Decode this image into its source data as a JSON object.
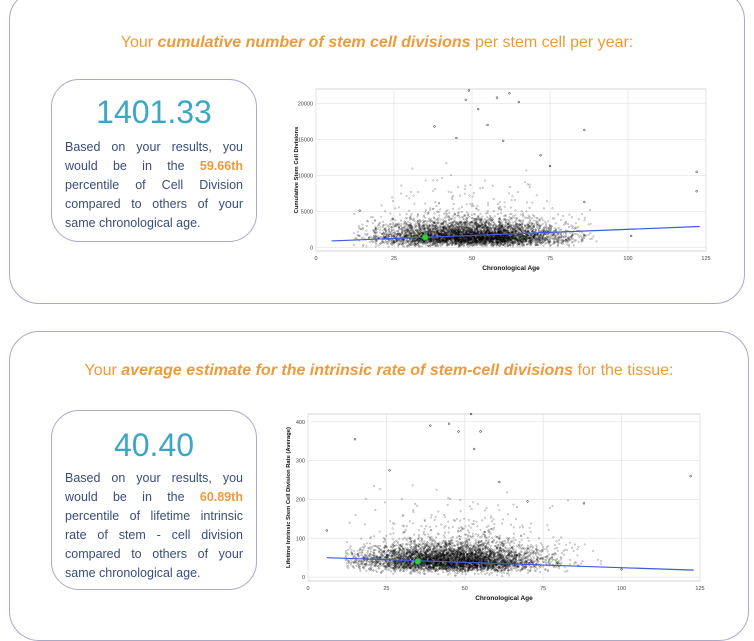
{
  "section1": {
    "heading_prefix": "Your",
    "heading_emphasis": "cumulative number of stem cell divisions",
    "heading_suffix": "per stem cell per year:",
    "score": "1401.33",
    "desc_1": "Based on your results, you would be in the",
    "percentile": "59.66th",
    "desc_2": "percentile of Cell Division compared to others of your same chronological age."
  },
  "section2": {
    "heading_prefix": "Your",
    "heading_emphasis": "average estimate for the intrinsic rate of stem-cell divisions",
    "heading_suffix": "for the tissue:",
    "score": "40.40",
    "desc_1": "Based on your results, you would be in the",
    "percentile": "60.89th",
    "desc_2": "percentile of lifetime intrinsic rate of stem - cell division compared to others of your same chronological age."
  },
  "chart_data": [
    {
      "type": "scatter",
      "xlabel": "Chronological Age",
      "ylabel": "Cumulative Stem Cell Divisions",
      "xlim": [
        0,
        125
      ],
      "ylim": [
        -500,
        22000
      ],
      "xticks": [
        0,
        25,
        50,
        75,
        100,
        125
      ],
      "yticks": [
        0,
        5000,
        10000,
        15000,
        20000
      ],
      "grid": true,
      "point_color": "#000000",
      "trend_line": {
        "color": "#3b5bdb",
        "x": [
          5,
          123
        ],
        "y": [
          900,
          2900
        ]
      },
      "highlight_point": {
        "x": 35,
        "y": 1401.33,
        "color": "#2ecc40"
      },
      "sample_points": [
        {
          "x": 14,
          "y": 5100
        },
        {
          "x": 38,
          "y": 16800
        },
        {
          "x": 45,
          "y": 15200
        },
        {
          "x": 48,
          "y": 20500
        },
        {
          "x": 49,
          "y": 21800
        },
        {
          "x": 52,
          "y": 19200
        },
        {
          "x": 55,
          "y": 17000
        },
        {
          "x": 58,
          "y": 20800
        },
        {
          "x": 62,
          "y": 21400
        },
        {
          "x": 65,
          "y": 20200
        },
        {
          "x": 60,
          "y": 14800
        },
        {
          "x": 72,
          "y": 12800
        },
        {
          "x": 75,
          "y": 11300
        },
        {
          "x": 86,
          "y": 16300
        },
        {
          "x": 86,
          "y": 6300
        },
        {
          "x": 101,
          "y": 1600
        },
        {
          "x": 122,
          "y": 10500
        },
        {
          "x": 122,
          "y": 7800
        }
      ]
    },
    {
      "type": "scatter",
      "xlabel": "Chronological Age",
      "ylabel": "Lifetime Intrinsic Stem Cell Division Rate (Average)",
      "xlim": [
        0,
        125
      ],
      "ylim": [
        -10,
        420
      ],
      "xticks": [
        0,
        25,
        50,
        75,
        100,
        125
      ],
      "yticks": [
        0,
        100,
        200,
        300,
        400
      ],
      "grid": true,
      "point_color": "#000000",
      "trend_line": {
        "color": "#3b5bdb",
        "x": [
          6,
          123
        ],
        "y": [
          50,
          18
        ]
      },
      "highlight_point": {
        "x": 35,
        "y": 40.4,
        "color": "#2ecc40"
      },
      "sample_points": [
        {
          "x": 15,
          "y": 355
        },
        {
          "x": 26,
          "y": 275
        },
        {
          "x": 39,
          "y": 390
        },
        {
          "x": 45,
          "y": 395
        },
        {
          "x": 52,
          "y": 420
        },
        {
          "x": 53,
          "y": 330
        },
        {
          "x": 48,
          "y": 375
        },
        {
          "x": 55,
          "y": 375
        },
        {
          "x": 61,
          "y": 245
        },
        {
          "x": 70,
          "y": 195
        },
        {
          "x": 88,
          "y": 190
        },
        {
          "x": 122,
          "y": 260
        },
        {
          "x": 6,
          "y": 120
        },
        {
          "x": 100,
          "y": 20
        }
      ]
    }
  ]
}
